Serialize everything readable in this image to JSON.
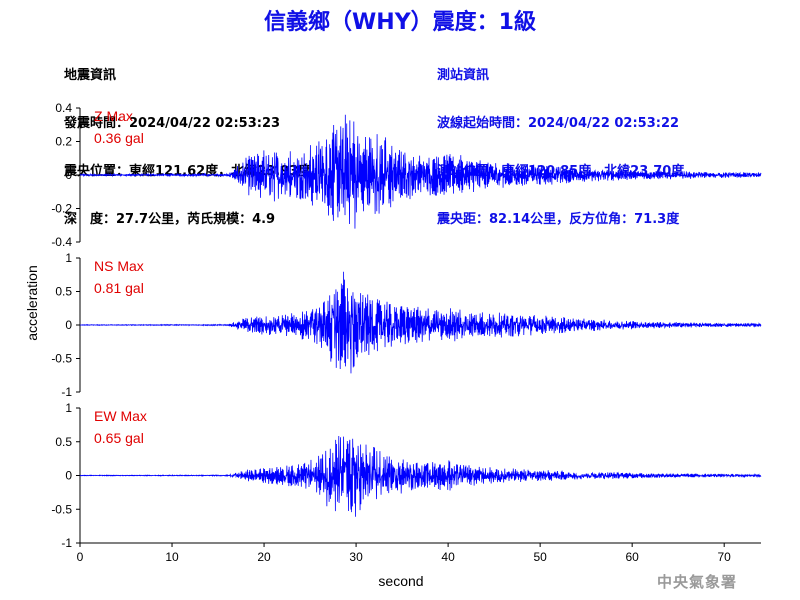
{
  "title": "信義鄉（WHY）震度：1級",
  "quake_info": [
    "地震資訊",
    "發震時間：2024/04/22 02:53:23",
    "震央位置：東經121.62度，北緯23.93度",
    "深　度：27.7公里，芮氏規模：4.9"
  ],
  "station_info": [
    "測站資訊",
    "波線起始時間：2024/04/22 02:53:22",
    "測站位置：東經120.85度，北緯23.70度",
    "震央距：82.14公里，反方位角：71.3度"
  ],
  "agency": "中央氣象署",
  "colors": {
    "title": "#1010e6",
    "trace": "#0000ff",
    "max_label": "#e00000",
    "agency": "#9a9a9a"
  },
  "chart_data": {
    "type": "line",
    "xlabel": "second",
    "ylabel": "acceleration",
    "xlim": [
      0,
      74
    ],
    "xticks": [
      0,
      10,
      20,
      30,
      40,
      50,
      60,
      70
    ],
    "series": [
      {
        "name": "Z",
        "max_label": "Z Max",
        "max_value": "0.36 gal",
        "peak": 0.36,
        "ylim": [
          -0.4,
          0.4
        ],
        "yticks": [
          -0.4,
          -0.2,
          0,
          0.2,
          0.4
        ],
        "ytick_labels": [
          "-0.4",
          "-0.2",
          "0",
          "0.2",
          "0.4"
        ],
        "envelope": {
          "t": [
            0,
            16,
            16.5,
            17,
            18,
            19,
            20,
            22,
            24,
            25,
            26,
            27,
            28,
            29,
            30,
            31,
            32,
            33,
            35,
            37,
            40,
            42,
            45,
            50,
            55,
            60,
            65,
            70,
            74
          ],
          "a": [
            0.004,
            0.006,
            0.02,
            0.04,
            0.09,
            0.12,
            0.13,
            0.13,
            0.12,
            0.15,
            0.18,
            0.24,
            0.3,
            0.33,
            0.27,
            0.23,
            0.22,
            0.2,
            0.13,
            0.1,
            0.11,
            0.09,
            0.065,
            0.05,
            0.035,
            0.025,
            0.02,
            0.015,
            0.012
          ]
        }
      },
      {
        "name": "NS",
        "max_label": "NS Max",
        "max_value": "0.81 gal",
        "peak": 0.81,
        "ylim": [
          -1,
          1
        ],
        "yticks": [
          -1,
          -0.5,
          0,
          0.5,
          1
        ],
        "ytick_labels": [
          "-1",
          "-0.5",
          "0",
          "0.5",
          "1"
        ],
        "envelope": {
          "t": [
            0,
            16,
            16.5,
            17,
            18,
            20,
            22,
            24,
            26,
            27,
            28,
            29,
            30,
            31,
            32,
            34,
            36,
            38,
            40,
            42,
            44,
            46,
            48,
            50,
            55,
            60,
            65,
            70,
            74
          ],
          "a": [
            0.004,
            0.006,
            0.03,
            0.05,
            0.09,
            0.12,
            0.14,
            0.18,
            0.28,
            0.42,
            0.58,
            0.72,
            0.55,
            0.42,
            0.35,
            0.28,
            0.25,
            0.23,
            0.22,
            0.18,
            0.16,
            0.15,
            0.14,
            0.12,
            0.08,
            0.05,
            0.035,
            0.025,
            0.02
          ]
        }
      },
      {
        "name": "EW",
        "max_label": "EW Max",
        "max_value": "0.65 gal",
        "peak": 0.65,
        "ylim": [
          -1,
          1
        ],
        "yticks": [
          -1,
          -0.5,
          0,
          0.5,
          1
        ],
        "ytick_labels": [
          "-1",
          "-0.5",
          "0",
          "0.5",
          "1"
        ],
        "envelope": {
          "t": [
            0,
            16,
            16.5,
            17,
            18,
            20,
            22,
            24,
            26,
            27,
            28,
            29,
            30,
            31,
            32,
            34,
            36,
            38,
            40,
            42,
            44,
            46,
            48,
            50,
            55,
            60,
            65,
            70,
            74
          ],
          "a": [
            0.004,
            0.006,
            0.02,
            0.04,
            0.07,
            0.1,
            0.12,
            0.15,
            0.25,
            0.4,
            0.55,
            0.6,
            0.52,
            0.42,
            0.35,
            0.25,
            0.2,
            0.17,
            0.2,
            0.14,
            0.11,
            0.09,
            0.08,
            0.07,
            0.05,
            0.035,
            0.025,
            0.02,
            0.015
          ]
        }
      }
    ]
  }
}
